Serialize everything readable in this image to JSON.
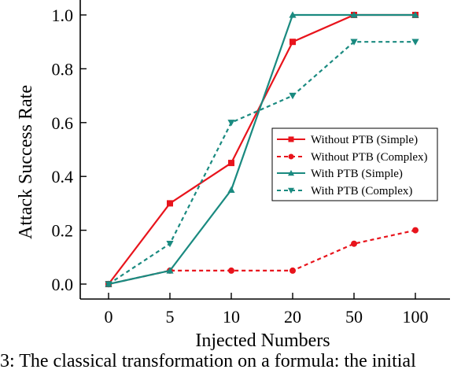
{
  "chart_data": {
    "type": "line",
    "xlabel": "Injected Numbers",
    "ylabel": "Attack Success Rate",
    "categories": [
      "0",
      "5",
      "10",
      "20",
      "50",
      "100"
    ],
    "ylim": [
      0.0,
      1.0
    ],
    "yticks": [
      "0.0",
      "0.2",
      "0.4",
      "0.6",
      "0.8",
      "1.0"
    ],
    "grid": false,
    "legend_position": "right",
    "series": [
      {
        "name": "Without PTB (Simple)",
        "values": [
          0.0,
          0.3,
          0.45,
          0.9,
          1.0,
          1.0
        ],
        "color": "#e8141c",
        "dash": "solid",
        "marker": "square"
      },
      {
        "name": "Without PTB (Complex)",
        "values": [
          0.0,
          0.05,
          0.05,
          0.05,
          0.15,
          0.2
        ],
        "color": "#e8141c",
        "dash": "dashed",
        "marker": "circle"
      },
      {
        "name": "With PTB (Simple)",
        "values": [
          0.0,
          0.05,
          0.35,
          1.0,
          1.0,
          1.0
        ],
        "color": "#1a8a80",
        "dash": "solid",
        "marker": "triangle-up"
      },
      {
        "name": "With PTB (Complex)",
        "values": [
          0.0,
          0.15,
          0.6,
          0.7,
          0.9,
          0.9
        ],
        "color": "#1a8a80",
        "dash": "dashed",
        "marker": "triangle-down"
      }
    ]
  },
  "caption": "3: The classical transformation on a formula: the initial"
}
